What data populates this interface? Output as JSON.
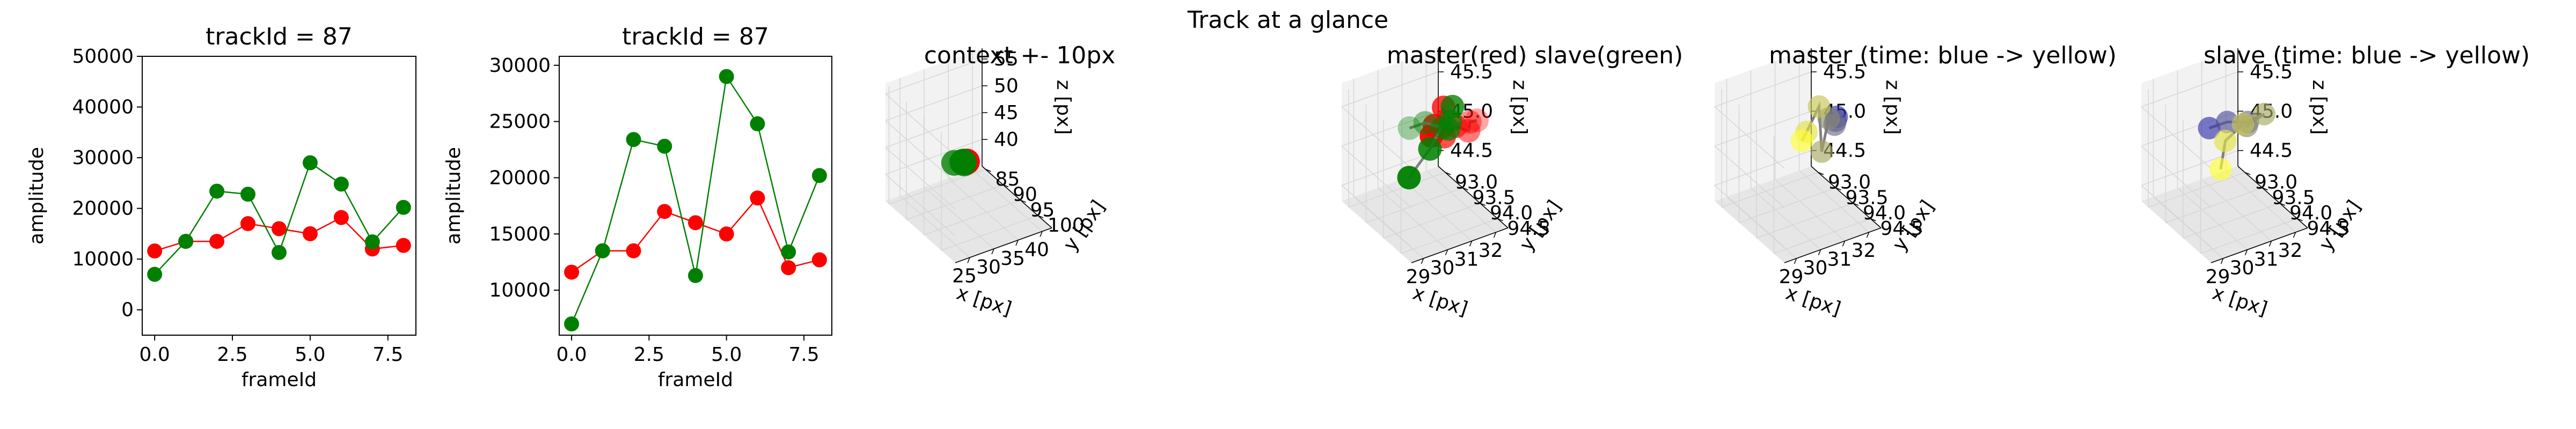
{
  "suptitle": "Track at a glance",
  "colors": {
    "master": "#ff0000",
    "slave": "#008000",
    "trail": "#808080"
  },
  "chart_data": [
    {
      "type": "line",
      "title": "trackId = 87",
      "xlabel": "frameId",
      "ylabel": "amplitude",
      "xlim": [
        -0.4,
        8.4
      ],
      "ylim": [
        -5000,
        50000
      ],
      "xticks": [
        0.0,
        2.5,
        5.0,
        7.5
      ],
      "xtick_labels": [
        "0.0",
        "2.5",
        "5.0",
        "7.5"
      ],
      "yticks": [
        0,
        10000,
        20000,
        30000,
        40000,
        50000
      ],
      "ytick_labels": [
        "0",
        "10000",
        "20000",
        "30000",
        "40000",
        "50000"
      ],
      "x": [
        0,
        1,
        2,
        3,
        4,
        5,
        6,
        7,
        8
      ],
      "series": [
        {
          "color": "#ff0000",
          "values": [
            11600,
            13500,
            13500,
            17000,
            16000,
            15000,
            18200,
            12000,
            12700
          ]
        },
        {
          "color": "#008000",
          "values": [
            7000,
            13500,
            23400,
            22800,
            11300,
            29000,
            24800,
            13400,
            20200
          ]
        }
      ]
    },
    {
      "type": "line",
      "title": "trackId = 87",
      "xlabel": "frameId",
      "ylabel": "amplitude",
      "xlim": [
        -0.4,
        8.4
      ],
      "ylim": [
        6000,
        30800
      ],
      "xticks": [
        0.0,
        2.5,
        5.0,
        7.5
      ],
      "xtick_labels": [
        "0.0",
        "2.5",
        "5.0",
        "7.5"
      ],
      "yticks": [
        10000,
        15000,
        20000,
        25000,
        30000
      ],
      "ytick_labels": [
        "10000",
        "15000",
        "20000",
        "25000",
        "30000"
      ],
      "x": [
        0,
        1,
        2,
        3,
        4,
        5,
        6,
        7,
        8
      ],
      "series": [
        {
          "color": "#ff0000",
          "values": [
            11600,
            13500,
            13500,
            17000,
            16000,
            15000,
            18200,
            12000,
            12700
          ]
        },
        {
          "color": "#008000",
          "values": [
            7000,
            13500,
            23400,
            22800,
            11300,
            29000,
            24800,
            13400,
            20200
          ]
        }
      ]
    },
    {
      "type": "scatter",
      "projection": "3d",
      "title": "context +- 10px",
      "xlabel": "x [px]",
      "ylabel": "y [px]",
      "zlabel": "z [px]",
      "xlim": [
        22,
        42
      ],
      "ylim": [
        84,
        104
      ],
      "zlim": [
        35,
        57
      ],
      "xticks": [
        25,
        30,
        35,
        40
      ],
      "xtick_labels": [
        "25",
        "30",
        "35",
        "40"
      ],
      "yticks": [
        85,
        90,
        95,
        100
      ],
      "ytick_labels": [
        "85",
        "90",
        "95",
        "100"
      ],
      "zticks": [
        40,
        45,
        50,
        55
      ],
      "ztick_labels": [
        "40",
        "45",
        "50",
        "55"
      ],
      "points": [
        {
          "x": 31.5,
          "y": 94.0,
          "z": 45.0,
          "color": "#ff0000"
        },
        {
          "x": 32.0,
          "y": 93.5,
          "z": 44.6,
          "color": "#ff0000"
        },
        {
          "x": 31.0,
          "y": 94.5,
          "z": 45.3,
          "color": "#ff0000"
        },
        {
          "x": 31.8,
          "y": 93.8,
          "z": 44.8,
          "color": "#ff0000"
        },
        {
          "x": 30.5,
          "y": 94.2,
          "z": 45.4,
          "color": "#008000"
        },
        {
          "x": 29.0,
          "y": 94.0,
          "z": 45.6,
          "color": "#008000"
        },
        {
          "x": 31.2,
          "y": 93.6,
          "z": 44.9,
          "color": "#008000"
        },
        {
          "x": 31.6,
          "y": 93.2,
          "z": 44.2,
          "color": "#008000"
        }
      ]
    },
    {
      "type": "scatter",
      "projection": "3d",
      "title": "master(red) slave(green)",
      "xlabel": "x [px]",
      "ylabel": "y [px]",
      "zlabel": "z [px]",
      "xlim": [
        28.5,
        32.5
      ],
      "ylim": [
        92.8,
        94.8
      ],
      "zlim": [
        44.3,
        45.8
      ],
      "xticks": [
        29,
        30,
        31,
        32
      ],
      "xtick_labels": [
        "29",
        "30",
        "31",
        "32"
      ],
      "yticks": [
        93.0,
        93.5,
        94.0,
        94.5
      ],
      "ytick_labels": [
        "93.0",
        "93.5",
        "94.0",
        "94.5"
      ],
      "zticks": [
        44.5,
        45.0,
        45.5
      ],
      "ztick_labels": [
        "44.5",
        "45.0",
        "45.5"
      ],
      "master": [
        {
          "x": 31.5,
          "y": 94.6,
          "z": 45.7
        },
        {
          "x": 31.5,
          "y": 94.4,
          "z": 45.6
        },
        {
          "x": 31.3,
          "y": 94.5,
          "z": 45.55
        },
        {
          "x": 31.2,
          "y": 94.2,
          "z": 45.5
        },
        {
          "x": 31.3,
          "y": 93.8,
          "z": 45.2
        },
        {
          "x": 32.0,
          "y": 93.3,
          "z": 45.3
        },
        {
          "x": 31.9,
          "y": 93.1,
          "z": 45.0
        },
        {
          "x": 32.0,
          "y": 92.95,
          "z": 44.8
        }
      ],
      "slave": [
        {
          "x": 29.0,
          "y": 94.4,
          "z": 45.8
        },
        {
          "x": 29.5,
          "y": 94.5,
          "z": 45.85
        },
        {
          "x": 30.5,
          "y": 94.3,
          "z": 45.6
        },
        {
          "x": 30.7,
          "y": 94.4,
          "z": 45.7
        },
        {
          "x": 30.9,
          "y": 94.2,
          "z": 45.5
        },
        {
          "x": 31.5,
          "y": 93.9,
          "z": 45.6
        },
        {
          "x": 31.0,
          "y": 93.6,
          "z": 45.0
        },
        {
          "x": 31.0,
          "y": 93.0,
          "z": 44.4
        }
      ]
    },
    {
      "type": "scatter",
      "projection": "3d",
      "title": "master (time: blue -> yellow)",
      "xlabel": "x [px]",
      "ylabel": "y [px]",
      "zlabel": "z [px]",
      "xlim": [
        28.5,
        32.5
      ],
      "ylim": [
        92.8,
        94.8
      ],
      "zlim": [
        44.3,
        45.8
      ],
      "xticks": [
        29,
        30,
        31,
        32
      ],
      "xtick_labels": [
        "29",
        "30",
        "31",
        "32"
      ],
      "yticks": [
        93.0,
        93.5,
        94.0,
        94.5
      ],
      "ytick_labels": [
        "93.0",
        "93.5",
        "94.0",
        "94.5"
      ],
      "zticks": [
        44.5,
        45.0,
        45.5
      ],
      "ztick_labels": [
        "44.5",
        "45.0",
        "45.5"
      ],
      "color_start": "#3333aa",
      "color_end": "#ffff33",
      "points": [
        {
          "x": 31.1,
          "y": 94.5,
          "z": 45.75
        },
        {
          "x": 31.2,
          "y": 94.4,
          "z": 45.65
        },
        {
          "x": 31.3,
          "y": 94.3,
          "z": 45.55
        },
        {
          "x": 31.2,
          "y": 94.2,
          "z": 45.6
        },
        {
          "x": 31.2,
          "y": 94.0,
          "z": 45.1
        },
        {
          "x": 32.1,
          "y": 93.3,
          "z": 45.3
        },
        {
          "x": 31.8,
          "y": 93.15,
          "z": 44.95
        },
        {
          "x": 31.9,
          "y": 92.95,
          "z": 44.75
        }
      ]
    },
    {
      "type": "scatter",
      "projection": "3d",
      "title": "slave (time: blue -> yellow)",
      "xlabel": "x [px]",
      "ylabel": "y [px]",
      "zlabel": "z [px]",
      "xlim": [
        28.5,
        32.5
      ],
      "ylim": [
        92.8,
        94.8
      ],
      "zlim": [
        44.3,
        45.8
      ],
      "xticks": [
        29,
        30,
        31,
        32
      ],
      "xtick_labels": [
        "29",
        "30",
        "31",
        "32"
      ],
      "yticks": [
        93.0,
        93.5,
        94.0,
        94.5
      ],
      "ytick_labels": [
        "93.0",
        "93.5",
        "94.0",
        "94.5"
      ],
      "zticks": [
        44.5,
        45.0,
        45.5
      ],
      "ztick_labels": [
        "44.5",
        "45.0",
        "45.5"
      ],
      "color_start": "#3333aa",
      "color_end": "#ffff33",
      "points": [
        {
          "x": 29.0,
          "y": 94.4,
          "z": 45.8
        },
        {
          "x": 29.6,
          "y": 94.5,
          "z": 45.85
        },
        {
          "x": 30.6,
          "y": 94.4,
          "z": 45.7
        },
        {
          "x": 30.7,
          "y": 94.3,
          "z": 45.6
        },
        {
          "x": 32.0,
          "y": 93.9,
          "z": 45.45
        },
        {
          "x": 31.7,
          "y": 93.5,
          "z": 45.2
        },
        {
          "x": 31.4,
          "y": 93.2,
          "z": 44.9
        },
        {
          "x": 31.5,
          "y": 93.0,
          "z": 44.45
        }
      ]
    }
  ]
}
